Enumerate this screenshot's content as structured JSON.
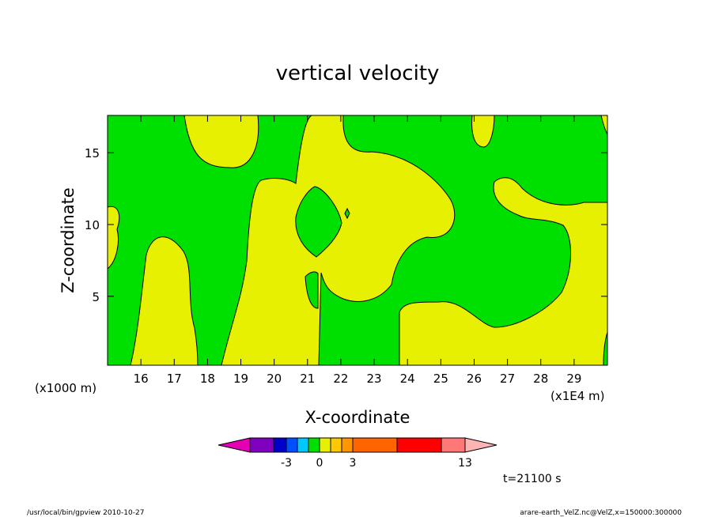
{
  "chart_data": {
    "type": "heatmap",
    "title": "vertical velocity",
    "xlabel": "X-coordinate",
    "ylabel": "Z-coordinate",
    "x_unit_note": "(x1E4 m)",
    "y_unit_note": "(x1000 m)",
    "xlim": [
      15.0,
      30.0
    ],
    "ylim": [
      0.2,
      17.6
    ],
    "x_ticks": [
      16,
      17,
      18,
      19,
      20,
      21,
      22,
      23,
      24,
      25,
      26,
      27,
      28,
      29
    ],
    "y_ticks": [
      5,
      10,
      15
    ],
    "grid": false,
    "time_label": "t=21100 s",
    "colorbar": {
      "colors": [
        "#e600b4",
        "#8000c0",
        "#0000c8",
        "#0050ff",
        "#00c8ff",
        "#00e000",
        "#e6f000",
        "#ffc800",
        "#ff9600",
        "#ff6400",
        "#ff0000",
        "#ff7878",
        "#ffb4b4"
      ],
      "labels": [
        {
          "value": -3,
          "text": "-3"
        },
        {
          "value": 0,
          "text": "0"
        },
        {
          "value": 3,
          "text": "3"
        },
        {
          "value": 13,
          "text": "13"
        }
      ]
    },
    "regions": [
      {
        "sign": "negative",
        "color": "#00e000",
        "description": "green (w below 0) background and upper-left / upper-right areas"
      },
      {
        "sign": "positive",
        "color": "#e6f000",
        "description": "yellow (w between 0 and 1) plumes"
      }
    ]
  },
  "footer": {
    "left": "/usr/local/bin/gpview  2010-10-27",
    "right": "arare-earth_VelZ.nc@VelZ,x=150000:300000"
  }
}
